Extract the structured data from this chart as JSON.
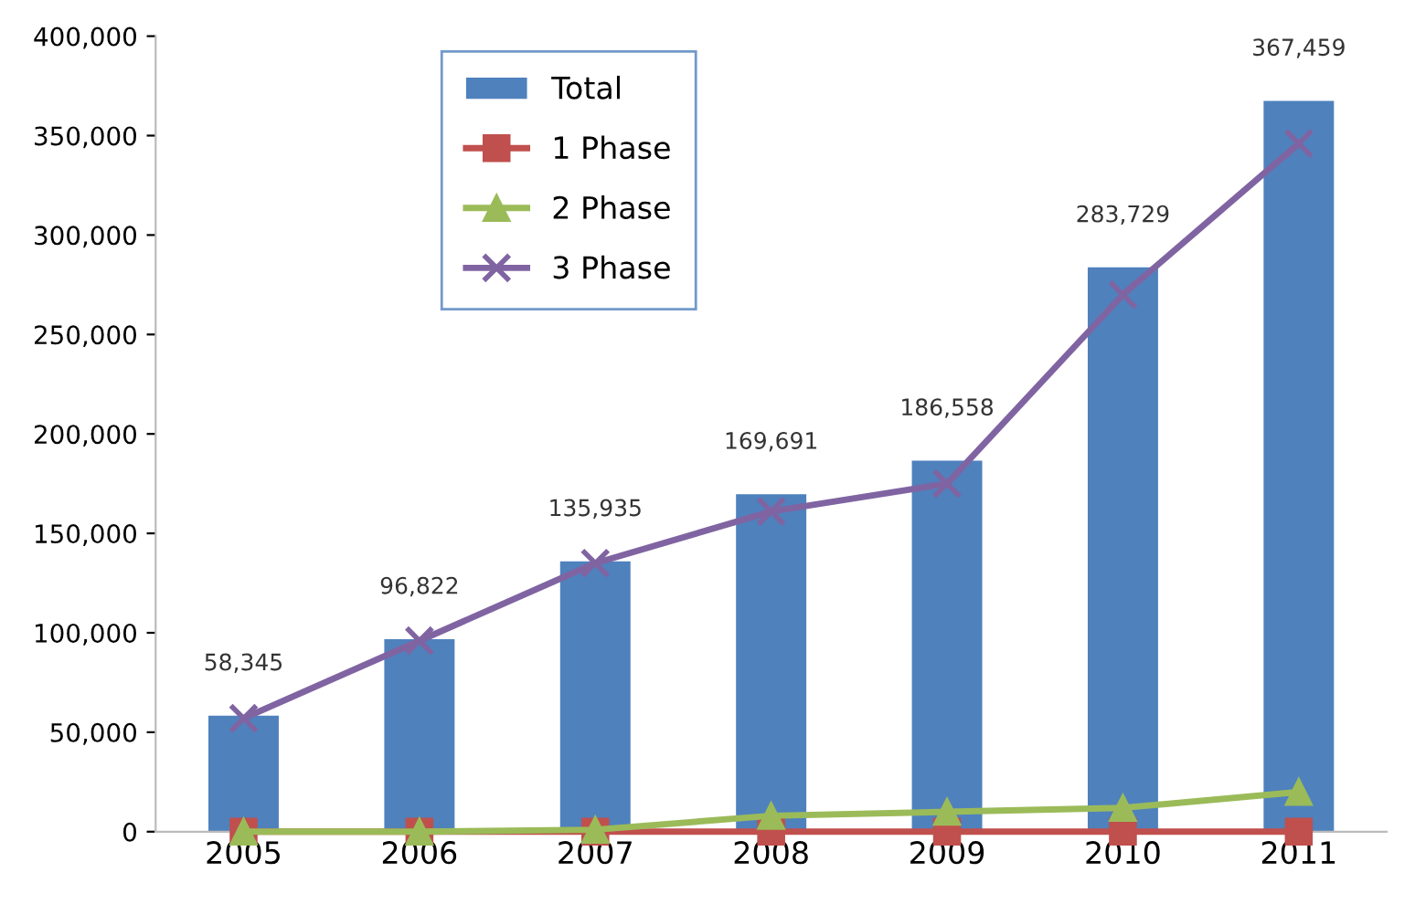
{
  "chart_data": {
    "type": "bar",
    "categories": [
      "2005",
      "2006",
      "2007",
      "2008",
      "2009",
      "2010",
      "2011"
    ],
    "series": [
      {
        "name": "Total",
        "color": "#4f81bd",
        "values": [
          58345,
          96822,
          135935,
          169691,
          186558,
          283729,
          367459
        ],
        "value_labels": [
          "58,345",
          "96,822",
          "135,935",
          "169,691",
          "186,558",
          "283,729",
          "367,459"
        ]
      },
      {
        "name": "1 Phase",
        "type": "line",
        "color": "#c0504d",
        "marker": "square",
        "values": [
          0,
          0,
          0,
          0,
          0,
          0,
          0
        ]
      },
      {
        "name": "2 Phase",
        "type": "line",
        "color": "#9bbb59",
        "marker": "triangle",
        "values": [
          0,
          0,
          1000,
          8000,
          10000,
          12000,
          20000
        ]
      },
      {
        "name": "3 Phase",
        "type": "line",
        "color": "#8064a2",
        "marker": "cross",
        "values": [
          57000,
          96000,
          135000,
          161000,
          175000,
          270000,
          346000
        ]
      }
    ],
    "ylim": [
      0,
      400000
    ],
    "yticks": [
      {
        "value": 0,
        "label": "0"
      },
      {
        "value": 50000,
        "label": "50,000"
      },
      {
        "value": 100000,
        "label": "100,000"
      },
      {
        "value": 150000,
        "label": "150,000"
      },
      {
        "value": 200000,
        "label": "200,000"
      },
      {
        "value": 250000,
        "label": "250,000"
      },
      {
        "value": 300000,
        "label": "300,000"
      },
      {
        "value": 350000,
        "label": "350,000"
      },
      {
        "value": 400000,
        "label": "400,000"
      }
    ],
    "grid": false,
    "legend": "top left"
  }
}
